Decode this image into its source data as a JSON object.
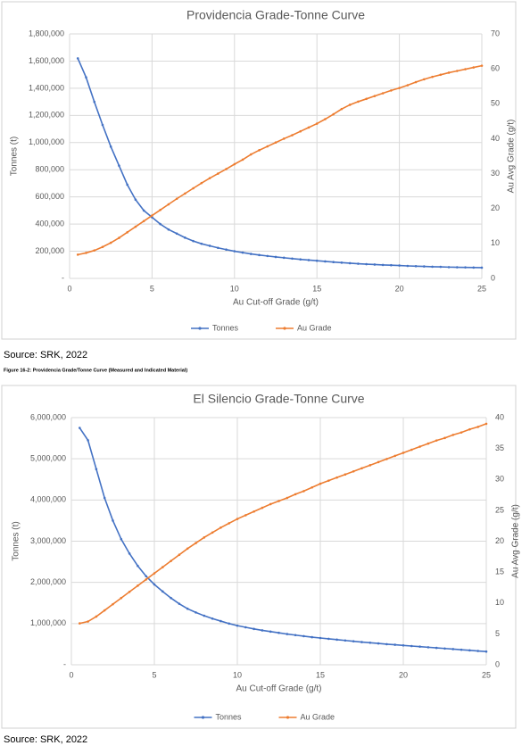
{
  "chart_data": [
    {
      "type": "line",
      "title": "Providencia Grade-Tonne Curve",
      "x_label": "Au Cut-off Grade (g/t)",
      "y_label": "Tonnes (t)",
      "y2_label": "Au Avg Grade (g/t)",
      "x": [
        0.5,
        1,
        1.5,
        2,
        2.5,
        3,
        3.5,
        4,
        4.5,
        5,
        5.5,
        6,
        6.5,
        7,
        7.5,
        8,
        8.5,
        9,
        9.5,
        10,
        10.5,
        11,
        11.5,
        12,
        12.5,
        13,
        13.5,
        14,
        14.5,
        15,
        15.5,
        16,
        16.5,
        17,
        17.5,
        18,
        18.5,
        19,
        19.5,
        20,
        20.5,
        21,
        21.5,
        22,
        22.5,
        23,
        23.5,
        24,
        24.5,
        25
      ],
      "xlim": [
        0,
        25
      ],
      "xticks": [
        0,
        5,
        10,
        15,
        20,
        25
      ],
      "ylim": [
        0,
        1800000
      ],
      "yticks": [
        {
          "value": 0,
          "label": "-"
        },
        {
          "value": 200000,
          "label": "200,000"
        },
        {
          "value": 400000,
          "label": "400,000"
        },
        {
          "value": 600000,
          "label": "600,000"
        },
        {
          "value": 800000,
          "label": "800,000"
        },
        {
          "value": 1000000,
          "label": "1,000,000"
        },
        {
          "value": 1200000,
          "label": "1,200,000"
        },
        {
          "value": 1400000,
          "label": "1,400,000"
        },
        {
          "value": 1600000,
          "label": "1,600,000"
        },
        {
          "value": 1800000,
          "label": "1,800,000"
        }
      ],
      "y2lim": [
        0,
        70
      ],
      "y2ticks": [
        0,
        10,
        20,
        30,
        40,
        50,
        60,
        70
      ],
      "grid": true,
      "legend": "bottom",
      "series": [
        {
          "name": "Tonnes",
          "color": "#4472c4",
          "values": [
            1620000,
            1480000,
            1300000,
            1130000,
            970000,
            830000,
            690000,
            580000,
            500000,
            450000,
            400000,
            360000,
            330000,
            300000,
            275000,
            255000,
            240000,
            225000,
            212000,
            200000,
            190000,
            180000,
            172000,
            165000,
            158000,
            152000,
            146000,
            140000,
            135000,
            130000,
            125000,
            120000,
            116000,
            112000,
            108000,
            105000,
            102000,
            99000,
            97000,
            95000,
            92000,
            90000,
            88000,
            86000,
            85000,
            83000,
            82000,
            81000,
            80000,
            79000
          ]
        },
        {
          "name": "Au Grade",
          "color": "#ed7d31",
          "axis": "y2",
          "values": [
            6.8,
            7.3,
            8.0,
            9.0,
            10.2,
            11.6,
            13.2,
            14.8,
            16.4,
            18.0,
            19.6,
            21.2,
            22.8,
            24.3,
            25.8,
            27.3,
            28.7,
            30.0,
            31.3,
            32.7,
            34.0,
            35.5,
            36.7,
            37.8,
            38.9,
            40.0,
            41.0,
            42.1,
            43.2,
            44.3,
            45.6,
            47.0,
            48.5,
            49.7,
            50.6,
            51.4,
            52.2,
            53.0,
            53.8,
            54.5,
            55.3,
            56.2,
            57.0,
            57.7,
            58.3,
            58.9,
            59.4,
            59.9,
            60.4,
            60.9
          ]
        }
      ]
    },
    {
      "type": "line",
      "title": "El Silencio Grade-Tonne Curve",
      "x_label": "Au Cut-off Grade (g/t)",
      "y_label": "Tonnes (t)",
      "y2_label": "Au Avg Grade (g/t)",
      "x": [
        0.5,
        1,
        1.5,
        2,
        2.5,
        3,
        3.5,
        4,
        4.5,
        5,
        5.5,
        6,
        6.5,
        7,
        7.5,
        8,
        8.5,
        9,
        9.5,
        10,
        10.5,
        11,
        11.5,
        12,
        12.5,
        13,
        13.5,
        14,
        14.5,
        15,
        15.5,
        16,
        16.5,
        17,
        17.5,
        18,
        18.5,
        19,
        19.5,
        20,
        20.5,
        21,
        21.5,
        22,
        22.5,
        23,
        23.5,
        24,
        24.5,
        25
      ],
      "xlim": [
        0,
        25
      ],
      "xticks": [
        0,
        5,
        10,
        15,
        20,
        25
      ],
      "ylim": [
        0,
        6000000
      ],
      "yticks": [
        {
          "value": 0,
          "label": "-"
        },
        {
          "value": 1000000,
          "label": "1,000,000"
        },
        {
          "value": 2000000,
          "label": "2,000,000"
        },
        {
          "value": 3000000,
          "label": "3,000,000"
        },
        {
          "value": 4000000,
          "label": "4,000,000"
        },
        {
          "value": 5000000,
          "label": "5,000,000"
        },
        {
          "value": 6000000,
          "label": "6,000,000"
        }
      ],
      "y2lim": [
        0,
        40
      ],
      "y2ticks": [
        0,
        5,
        10,
        15,
        20,
        25,
        30,
        35,
        40
      ],
      "grid": true,
      "legend": "bottom",
      "series": [
        {
          "name": "Tonnes",
          "color": "#4472c4",
          "values": [
            5750000,
            5450000,
            4750000,
            4050000,
            3500000,
            3050000,
            2700000,
            2400000,
            2150000,
            1950000,
            1780000,
            1620000,
            1480000,
            1360000,
            1270000,
            1190000,
            1120000,
            1060000,
            1000000,
            950000,
            910000,
            870000,
            835000,
            805000,
            775000,
            745000,
            720000,
            695000,
            670000,
            650000,
            630000,
            610000,
            590000,
            570000,
            550000,
            535000,
            518000,
            500000,
            485000,
            470000,
            455000,
            440000,
            425000,
            410000,
            395000,
            380000,
            365000,
            350000,
            335000,
            320000
          ]
        },
        {
          "name": "Au Grade",
          "color": "#ed7d31",
          "axis": "y2",
          "values": [
            6.7,
            7.0,
            7.8,
            8.8,
            9.8,
            10.8,
            11.8,
            12.8,
            13.8,
            14.8,
            15.8,
            16.8,
            17.8,
            18.8,
            19.7,
            20.6,
            21.4,
            22.2,
            22.9,
            23.6,
            24.2,
            24.8,
            25.4,
            26.0,
            26.5,
            27.0,
            27.6,
            28.1,
            28.7,
            29.3,
            29.8,
            30.3,
            30.8,
            31.3,
            31.8,
            32.3,
            32.8,
            33.3,
            33.8,
            34.3,
            34.8,
            35.3,
            35.8,
            36.3,
            36.7,
            37.2,
            37.6,
            38.1,
            38.5,
            39.0
          ]
        }
      ]
    }
  ],
  "sources": [
    "Source: SRK, 2022",
    "Source: SRK, 2022"
  ],
  "figure_caption": "Figure 16-2: Providencia Grade/Tonne Curve (Measured and Indicated Material)"
}
